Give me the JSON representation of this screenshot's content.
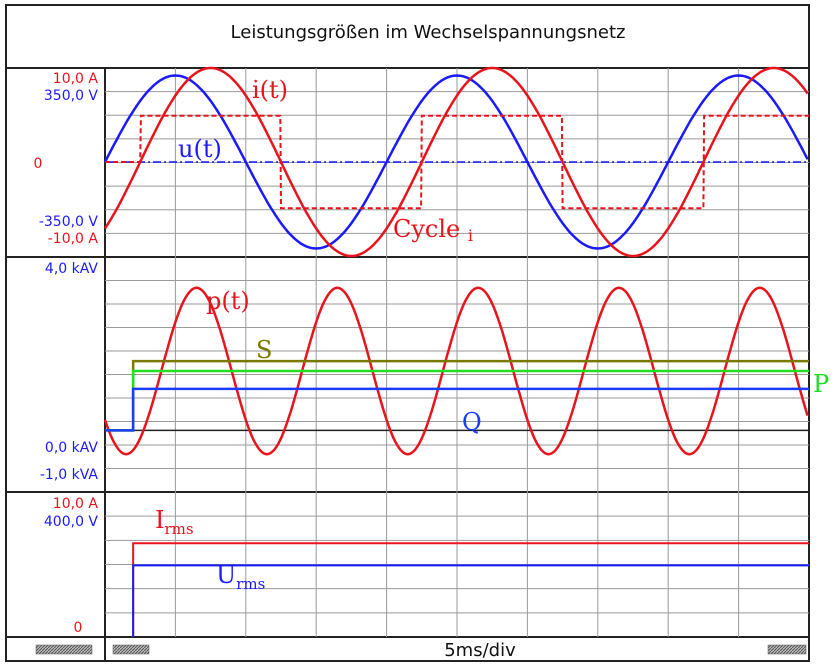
{
  "title": "Leistungsgrößen im Wechselspannungsnetz",
  "footer": {
    "time_scale": "5ms/div"
  },
  "colors": {
    "current": "#e8141c",
    "voltage": "#1a1aff",
    "apparent": "#7a7a00",
    "active": "#22dd22",
    "reactive": "#1a3cff"
  },
  "chart_data": [
    {
      "type": "line",
      "panel": "top",
      "y_left_labels_current": {
        "max": "10,0  A",
        "min": "-10,0  A"
      },
      "y_left_labels_voltage": {
        "max": "350,0  V",
        "min": "-350,0  V"
      },
      "y_zero_label": "0",
      "series": [
        {
          "name": "u(t)",
          "label": "u(t)",
          "type": "sine",
          "amplitude": 350,
          "unit": "V",
          "period_ms": 20,
          "phase_deg": 0
        },
        {
          "name": "i(t)",
          "label": "i(t)",
          "type": "sine",
          "amplitude": 10,
          "unit": "A",
          "period_ms": 20,
          "phase_deg": -45
        },
        {
          "name": "Cycle i",
          "label": "Cycle",
          "label_sub": "i",
          "type": "square",
          "level_fraction": 0.6,
          "period_ms": 20
        }
      ],
      "x_range_ms": [
        0,
        50
      ],
      "grid": true
    },
    {
      "type": "line",
      "panel": "middle",
      "y_left_labels": {
        "max": "4,0 kAV",
        "zero": "0,0 kAV",
        "min": "-1,0 kVA"
      },
      "ylim_kVA": [
        -1,
        4
      ],
      "series": [
        {
          "name": "p(t)",
          "label": "p(t)",
          "mean_kW": 1.5,
          "amplitude_kW": 2.1,
          "period_ms": 10
        },
        {
          "name": "S",
          "label": "S",
          "value_kVA": 1.75,
          "start_ms": 2
        },
        {
          "name": "P",
          "label": "P",
          "value_kW": 1.5,
          "start_ms": 2
        },
        {
          "name": "Q",
          "label": "Q",
          "value_kVAr": 1.05,
          "start_ms": 2
        }
      ],
      "x_range_ms": [
        0,
        50
      ],
      "grid": true
    },
    {
      "type": "line",
      "panel": "bottom",
      "y_left_labels_current": {
        "max": "10,0  A"
      },
      "y_left_labels_voltage": {
        "max": "400,0  V"
      },
      "y_zero_label": "0",
      "series": [
        {
          "name": "Irms",
          "label": "I",
          "label_sub": "rms",
          "value_A": 7.1,
          "start_ms": 2
        },
        {
          "name": "Urms",
          "label": "U",
          "label_sub": "rms",
          "value_V": 247,
          "start_ms": 2
        }
      ],
      "x_range_ms": [
        0,
        50
      ],
      "grid": true
    }
  ]
}
